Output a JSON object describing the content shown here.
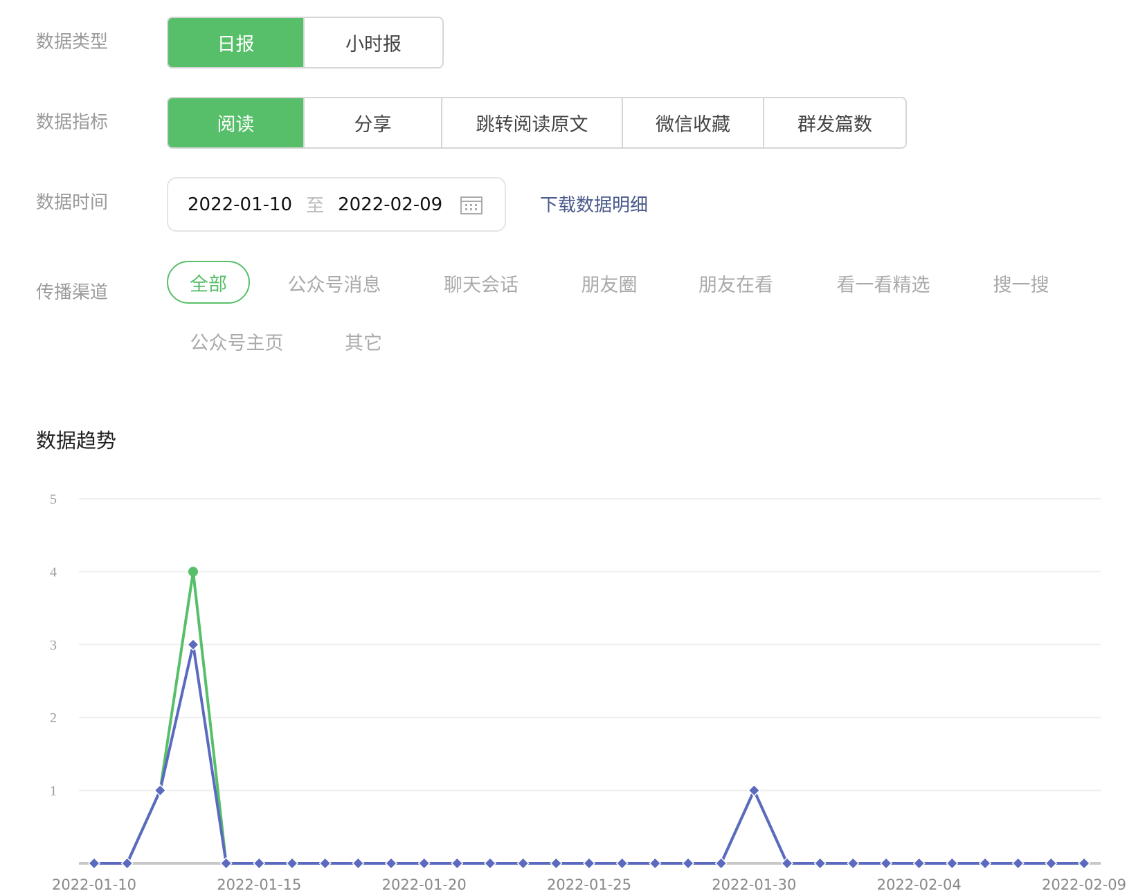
{
  "filters": {
    "type": {
      "label": "数据类型",
      "options": [
        "日报",
        "小时报"
      ],
      "selected": 0
    },
    "metric": {
      "label": "数据指标",
      "options": [
        "阅读",
        "分享",
        "跳转阅读原文",
        "微信收藏",
        "群发篇数"
      ],
      "selected": 0
    },
    "time": {
      "label": "数据时间",
      "start": "2022-01-10",
      "sep": "至",
      "end": "2022-02-09",
      "download": "下载数据明细"
    },
    "channel": {
      "label": "传播渠道",
      "options": [
        "全部",
        "公众号消息",
        "聊天会话",
        "朋友圈",
        "朋友在看",
        "看一看精选",
        "搜一搜",
        "公众号主页",
        "其它"
      ],
      "selected": 0
    }
  },
  "section_title": "数据趋势",
  "colors": {
    "accent": "#57bf6a",
    "series_green": "#57bf6a",
    "series_blue": "#5b6abf",
    "link": "#4a5a8a"
  },
  "chart_data": {
    "type": "line",
    "ylim": [
      0,
      5
    ],
    "yticks": [
      "1",
      "2",
      "3",
      "4",
      "5"
    ],
    "x": [
      "2022-01-10",
      "2022-01-11",
      "2022-01-12",
      "2022-01-13",
      "2022-01-14",
      "2022-01-15",
      "2022-01-16",
      "2022-01-17",
      "2022-01-18",
      "2022-01-19",
      "2022-01-20",
      "2022-01-21",
      "2022-01-22",
      "2022-01-23",
      "2022-01-24",
      "2022-01-25",
      "2022-01-26",
      "2022-01-27",
      "2022-01-28",
      "2022-01-29",
      "2022-01-30",
      "2022-01-31",
      "2022-02-01",
      "2022-02-02",
      "2022-02-03",
      "2022-02-04",
      "2022-02-05",
      "2022-02-06",
      "2022-02-07",
      "2022-02-08",
      "2022-02-09"
    ],
    "xtick_labels": [
      "2022-01-10",
      "2022-01-15",
      "2022-01-20",
      "2022-01-25",
      "2022-01-30",
      "2022-02-04",
      "2022-02-09"
    ],
    "series": [
      {
        "color": "#57bf6a",
        "marker": "circle",
        "values": [
          0,
          0,
          1,
          4,
          0,
          0,
          0,
          0,
          0,
          0,
          0,
          0,
          0,
          0,
          0,
          0,
          0,
          0,
          0,
          0,
          1,
          0,
          0,
          0,
          0,
          0,
          0,
          0,
          0,
          0,
          0
        ]
      },
      {
        "color": "#5b6abf",
        "marker": "diamond",
        "values": [
          0,
          0,
          1,
          3,
          0,
          0,
          0,
          0,
          0,
          0,
          0,
          0,
          0,
          0,
          0,
          0,
          0,
          0,
          0,
          0,
          1,
          0,
          0,
          0,
          0,
          0,
          0,
          0,
          0,
          0,
          0
        ]
      }
    ],
    "grid": true
  }
}
